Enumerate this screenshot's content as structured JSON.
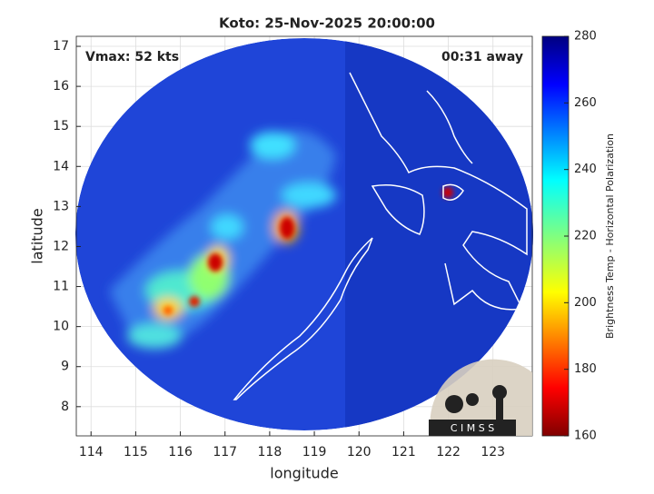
{
  "chart_data": {
    "type": "map",
    "title": "Koto: 25-Nov-2025 20:00:00",
    "annotations": {
      "vmax": "Vmax: 52 kts",
      "time_away": "00:31 away"
    },
    "xlabel": "longitude",
    "ylabel": "latitude",
    "xlim": [
      113.67,
      123.88
    ],
    "xticks": [
      114,
      115,
      116,
      117,
      118,
      119,
      120,
      121,
      122,
      123
    ],
    "ylim": [
      7.27,
      17.25
    ],
    "yticks": [
      8,
      9,
      10,
      11,
      12,
      13,
      14,
      15,
      16,
      17
    ],
    "grid": true,
    "colorbar": {
      "label": "Brightness Temp - Horizontal Polarization",
      "clim": [
        160,
        280
      ],
      "ticks": [
        160,
        180,
        200,
        220,
        240,
        260,
        280
      ],
      "colormap": "jet"
    },
    "logo": "C I M S S"
  }
}
